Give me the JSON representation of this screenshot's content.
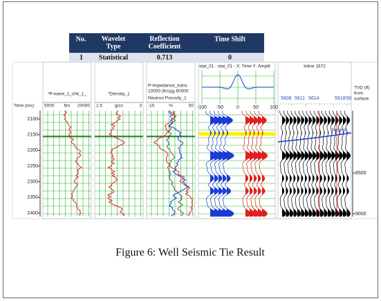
{
  "table": {
    "header": [
      "No.",
      "Wavelet Type",
      "Reflection Coefficient",
      "Time Shift"
    ],
    "rows": [
      [
        "1",
        "Statistical",
        "0.713",
        "0"
      ]
    ]
  },
  "time_axis": {
    "label": "Time (ms)",
    "ticks": [
      2100,
      2150,
      2200,
      2250,
      2300,
      2350,
      2400
    ]
  },
  "tracks": [
    {
      "name": "*P-wave_1_chk_1_",
      "scale": [
        "5000",
        "ft/s",
        "20000"
      ]
    },
    {
      "name": "*Density_1",
      "scale": [
        "1.5",
        "g/cc",
        "3"
      ]
    },
    {
      "name": "P-Impedance_trans",
      "name_scale": "10000 (ft/s)(g 60000",
      "name2": "Neutron Porosity_1",
      "scale": [
        "-10",
        "%",
        "50"
      ]
    }
  ],
  "wavelet": {
    "title": "stat_01 : stat_01 - X: Time Y: Amplit",
    "xticks": [
      "-100",
      "-50",
      "0",
      "50",
      "100"
    ]
  },
  "inline": {
    "title": "Inline 1672",
    "traces": [
      "5608",
      "5611",
      "5614",
      "5618",
      "56:"
    ],
    "horizon": "Regrid_"
  },
  "tvd": {
    "label": [
      "TVD (ft)",
      "from",
      "surface"
    ],
    "ticks": [
      "8500",
      "9000"
    ]
  },
  "caption": "Figure 6: Well Seismic Tie Result"
}
